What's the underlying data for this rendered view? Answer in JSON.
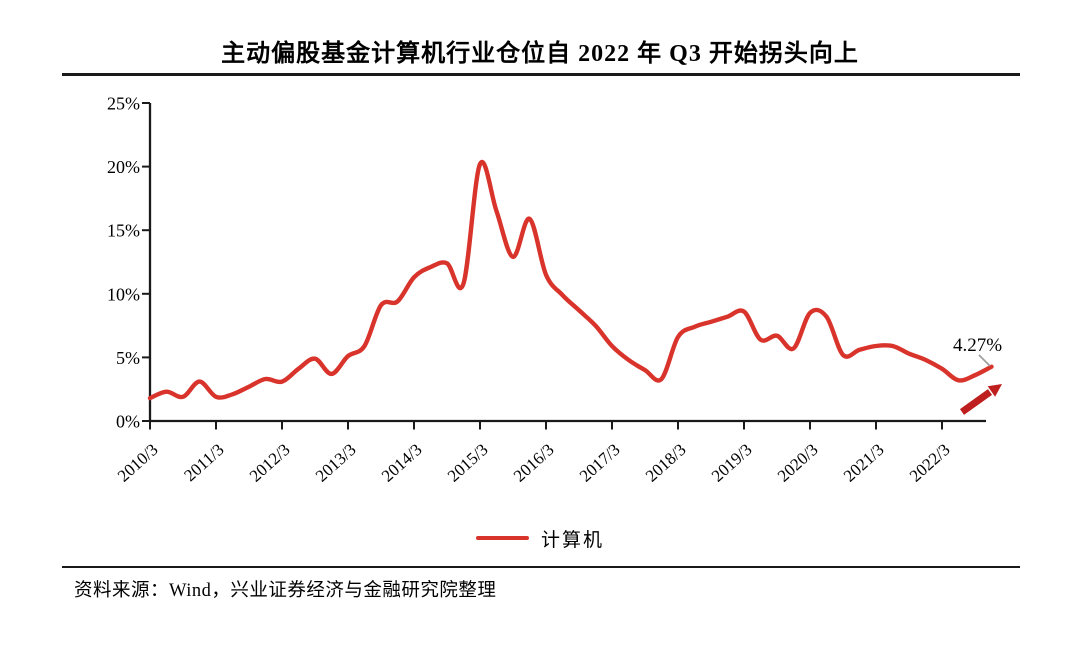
{
  "title": "主动偏股基金计算机行业仓位自 2022 年 Q3 开始拐头向上",
  "source": "资料来源：Wind，兴业证券经济与金融研究院整理",
  "legend": {
    "label": "计算机"
  },
  "annotation": {
    "label": "4.27%"
  },
  "colors": {
    "line": "#D9342C",
    "arrow": "#BE1E1E",
    "axis": "#1A1A1A",
    "leader": "#9B9B9B",
    "text": "#000000"
  },
  "chart_data": {
    "type": "line",
    "title": "主动偏股基金计算机行业仓位自 2022 年 Q3 开始拐头向上",
    "xlabel": "",
    "ylabel": "",
    "ylim": [
      0,
      25
    ],
    "grid": false,
    "legend_position": "bottom",
    "y_tick_labels": [
      "0%",
      "5%",
      "10%",
      "15%",
      "20%",
      "25%"
    ],
    "x_tick_labels": [
      "2010/3",
      "2011/3",
      "2012/3",
      "2013/3",
      "2014/3",
      "2015/3",
      "2016/3",
      "2017/3",
      "2018/3",
      "2019/3",
      "2020/3",
      "2021/3",
      "2022/3"
    ],
    "x": [
      "2010/3",
      "2010/6",
      "2010/9",
      "2010/12",
      "2011/3",
      "2011/6",
      "2011/9",
      "2011/12",
      "2012/3",
      "2012/6",
      "2012/9",
      "2012/12",
      "2013/3",
      "2013/6",
      "2013/9",
      "2013/12",
      "2014/3",
      "2014/6",
      "2014/9",
      "2014/12",
      "2015/3",
      "2015/6",
      "2015/9",
      "2015/12",
      "2016/3",
      "2016/6",
      "2016/9",
      "2016/12",
      "2017/3",
      "2017/6",
      "2017/9",
      "2017/12",
      "2018/3",
      "2018/6",
      "2018/9",
      "2018/12",
      "2019/3",
      "2019/6",
      "2019/9",
      "2019/12",
      "2020/3",
      "2020/6",
      "2020/9",
      "2020/12",
      "2021/3",
      "2021/6",
      "2021/9",
      "2021/12",
      "2022/3",
      "2022/6",
      "2022/9",
      "2022/12"
    ],
    "series": [
      {
        "name": "计算机",
        "values": [
          1.8,
          2.3,
          1.9,
          3.1,
          1.9,
          2.1,
          2.7,
          3.3,
          3.1,
          4.1,
          4.9,
          3.7,
          5.1,
          5.9,
          9.1,
          9.4,
          11.3,
          12.1,
          12.4,
          10.8,
          20.2,
          16.5,
          12.9,
          15.9,
          11.5,
          9.9,
          8.7,
          7.5,
          5.9,
          4.8,
          4.0,
          3.3,
          6.6,
          7.4,
          7.8,
          8.2,
          8.6,
          6.4,
          6.7,
          5.7,
          8.5,
          8.2,
          5.2,
          5.6,
          5.9,
          5.9,
          5.3,
          4.8,
          4.1,
          3.2,
          3.6,
          4.27
        ]
      }
    ],
    "annotations": [
      {
        "text": "4.27%",
        "x": "2022/12",
        "y": 4.27
      }
    ]
  }
}
